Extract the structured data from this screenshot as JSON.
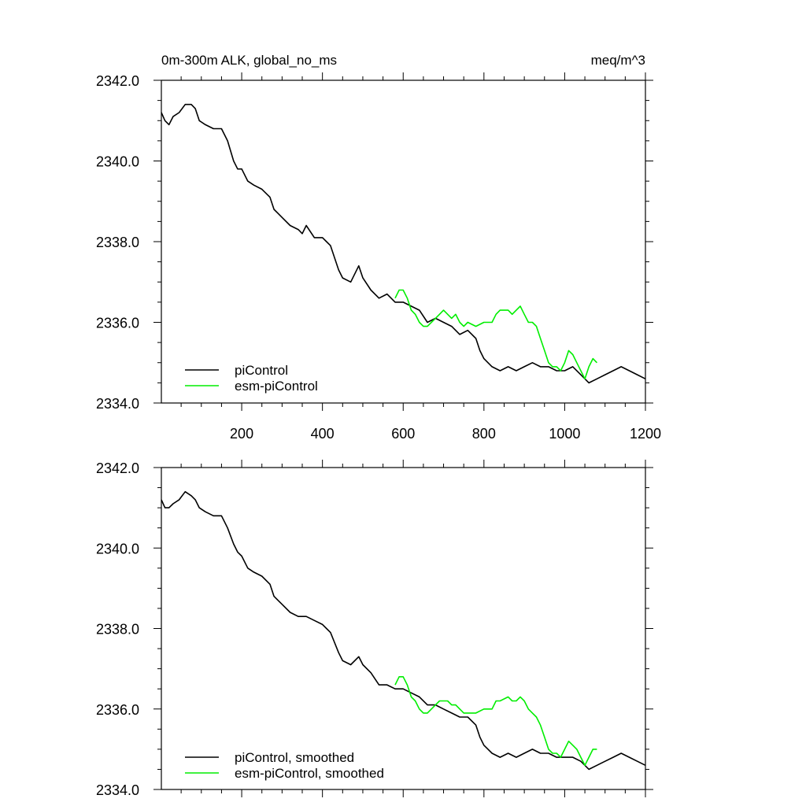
{
  "figure": {
    "title_left": "0m-300m ALK, global_no_ms",
    "title_right": "meq/m^3"
  },
  "chart_data": [
    {
      "type": "line",
      "panel": "top",
      "xlim": [
        1,
        1200
      ],
      "ylim": [
        2334.0,
        2342.0
      ],
      "x_ticks": [
        200,
        400,
        600,
        800,
        1000,
        1200
      ],
      "x_tick_labels": [
        "200",
        "400",
        "600",
        "800",
        "1000",
        "1200"
      ],
      "y_ticks": [
        2334.0,
        2336.0,
        2338.0,
        2340.0,
        2342.0
      ],
      "y_tick_labels": [
        "2334.0",
        "2336.0",
        "2338.0",
        "2340.0",
        "2342.0"
      ],
      "legend_position": "bottom-left",
      "grid": false,
      "series": [
        {
          "name": "piControl",
          "color": "#000000",
          "x": [
            1,
            10,
            20,
            30,
            45,
            60,
            75,
            85,
            95,
            110,
            130,
            150,
            165,
            180,
            190,
            200,
            215,
            230,
            250,
            270,
            280,
            290,
            300,
            320,
            340,
            350,
            360,
            380,
            400,
            410,
            420,
            440,
            450,
            470,
            490,
            500,
            520,
            540,
            560,
            580,
            600,
            620,
            640,
            660,
            680,
            700,
            720,
            740,
            760,
            780,
            790,
            800,
            810,
            820,
            840,
            860,
            880,
            900,
            920,
            940,
            960,
            980,
            1000,
            1020,
            1040,
            1060,
            1080,
            1100,
            1120,
            1140,
            1160,
            1180,
            1200
          ],
          "values": [
            2341.2,
            2341.0,
            2340.9,
            2341.1,
            2341.2,
            2341.4,
            2341.4,
            2341.3,
            2341.0,
            2340.9,
            2340.8,
            2340.8,
            2340.5,
            2340.0,
            2339.8,
            2339.8,
            2339.5,
            2339.4,
            2339.3,
            2339.1,
            2338.8,
            2338.7,
            2338.6,
            2338.4,
            2338.3,
            2338.2,
            2338.4,
            2338.1,
            2338.1,
            2338.0,
            2337.9,
            2337.3,
            2337.1,
            2337.0,
            2337.4,
            2337.1,
            2336.8,
            2336.6,
            2336.7,
            2336.5,
            2336.5,
            2336.4,
            2336.3,
            2336.0,
            2336.1,
            2336.0,
            2335.9,
            2335.7,
            2335.8,
            2335.6,
            2335.3,
            2335.1,
            2335.0,
            2334.9,
            2334.8,
            2334.9,
            2334.8,
            2334.9,
            2335.0,
            2334.9,
            2334.9,
            2334.8,
            2334.8,
            2334.9,
            2334.7,
            2334.5,
            2334.6,
            2334.7,
            2334.8,
            2334.9,
            2334.8,
            2334.7,
            2334.6
          ]
        },
        {
          "name": "esm-piControl",
          "color": "#00ee00",
          "x": [
            580,
            590,
            600,
            610,
            620,
            630,
            640,
            650,
            660,
            670,
            680,
            690,
            700,
            710,
            720,
            730,
            740,
            750,
            760,
            780,
            800,
            820,
            830,
            840,
            860,
            870,
            880,
            890,
            900,
            910,
            920,
            930,
            940,
            950,
            960,
            970,
            980,
            990,
            1000,
            1010,
            1020,
            1030,
            1040,
            1050,
            1060,
            1070,
            1080
          ],
          "values": [
            2336.6,
            2336.8,
            2336.8,
            2336.6,
            2336.3,
            2336.2,
            2336.0,
            2335.9,
            2335.9,
            2336.0,
            2336.1,
            2336.2,
            2336.3,
            2336.2,
            2336.1,
            2336.2,
            2336.0,
            2335.9,
            2336.0,
            2335.9,
            2336.0,
            2336.0,
            2336.2,
            2336.3,
            2336.3,
            2336.2,
            2336.3,
            2336.4,
            2336.2,
            2336.0,
            2336.0,
            2335.9,
            2335.6,
            2335.3,
            2335.0,
            2334.9,
            2334.9,
            2334.8,
            2335.0,
            2335.3,
            2335.2,
            2335.0,
            2334.8,
            2334.6,
            2334.9,
            2335.1,
            2335.0
          ]
        }
      ]
    },
    {
      "type": "line",
      "panel": "bottom",
      "xlim": [
        1,
        1200
      ],
      "ylim": [
        2334.0,
        2342.0
      ],
      "x_ticks": [
        200,
        400,
        600,
        800,
        1000,
        1200
      ],
      "y_ticks": [
        2334.0,
        2336.0,
        2338.0,
        2340.0,
        2342.0
      ],
      "y_tick_labels": [
        "2334.0",
        "2336.0",
        "2338.0",
        "2340.0",
        "2342.0"
      ],
      "legend_position": "bottom-left",
      "grid": false,
      "series": [
        {
          "name": "piControl, smoothed",
          "color": "#000000",
          "x": [
            1,
            10,
            20,
            30,
            45,
            60,
            75,
            85,
            95,
            110,
            130,
            150,
            165,
            180,
            190,
            200,
            215,
            230,
            250,
            270,
            280,
            290,
            300,
            320,
            340,
            350,
            360,
            380,
            400,
            410,
            420,
            440,
            450,
            470,
            490,
            500,
            520,
            540,
            560,
            580,
            600,
            620,
            640,
            660,
            680,
            700,
            720,
            740,
            760,
            780,
            790,
            800,
            810,
            820,
            840,
            860,
            880,
            900,
            920,
            940,
            960,
            980,
            1000,
            1020,
            1040,
            1060,
            1080,
            1100,
            1120,
            1140,
            1160,
            1180,
            1200
          ],
          "values": [
            2341.2,
            2341.0,
            2341.0,
            2341.1,
            2341.2,
            2341.4,
            2341.3,
            2341.2,
            2341.0,
            2340.9,
            2340.8,
            2340.8,
            2340.5,
            2340.1,
            2339.9,
            2339.8,
            2339.5,
            2339.4,
            2339.3,
            2339.1,
            2338.8,
            2338.7,
            2338.6,
            2338.4,
            2338.3,
            2338.3,
            2338.3,
            2338.2,
            2338.1,
            2338.0,
            2337.9,
            2337.4,
            2337.2,
            2337.1,
            2337.3,
            2337.1,
            2336.9,
            2336.6,
            2336.6,
            2336.5,
            2336.5,
            2336.4,
            2336.3,
            2336.1,
            2336.1,
            2336.0,
            2335.9,
            2335.8,
            2335.8,
            2335.6,
            2335.3,
            2335.1,
            2335.0,
            2334.9,
            2334.8,
            2334.9,
            2334.8,
            2334.9,
            2335.0,
            2334.9,
            2334.9,
            2334.8,
            2334.8,
            2334.8,
            2334.7,
            2334.5,
            2334.6,
            2334.7,
            2334.8,
            2334.9,
            2334.8,
            2334.7,
            2334.6
          ]
        },
        {
          "name": "esm-piControl, smoothed",
          "color": "#00ee00",
          "x": [
            580,
            590,
            600,
            610,
            620,
            630,
            640,
            650,
            660,
            670,
            680,
            690,
            700,
            710,
            720,
            730,
            740,
            750,
            760,
            780,
            800,
            820,
            830,
            840,
            860,
            870,
            880,
            890,
            900,
            910,
            920,
            930,
            940,
            950,
            960,
            970,
            980,
            990,
            1000,
            1010,
            1020,
            1030,
            1040,
            1050,
            1060,
            1070,
            1080
          ],
          "values": [
            2336.6,
            2336.8,
            2336.8,
            2336.6,
            2336.3,
            2336.2,
            2336.0,
            2335.9,
            2335.9,
            2336.0,
            2336.1,
            2336.2,
            2336.2,
            2336.2,
            2336.1,
            2336.1,
            2336.0,
            2335.9,
            2335.9,
            2335.9,
            2336.0,
            2336.0,
            2336.2,
            2336.2,
            2336.3,
            2336.2,
            2336.2,
            2336.3,
            2336.2,
            2336.0,
            2335.9,
            2335.8,
            2335.6,
            2335.3,
            2335.0,
            2334.9,
            2334.9,
            2334.8,
            2335.0,
            2335.2,
            2335.1,
            2335.0,
            2334.8,
            2334.6,
            2334.8,
            2335.0,
            2335.0
          ]
        }
      ]
    }
  ]
}
